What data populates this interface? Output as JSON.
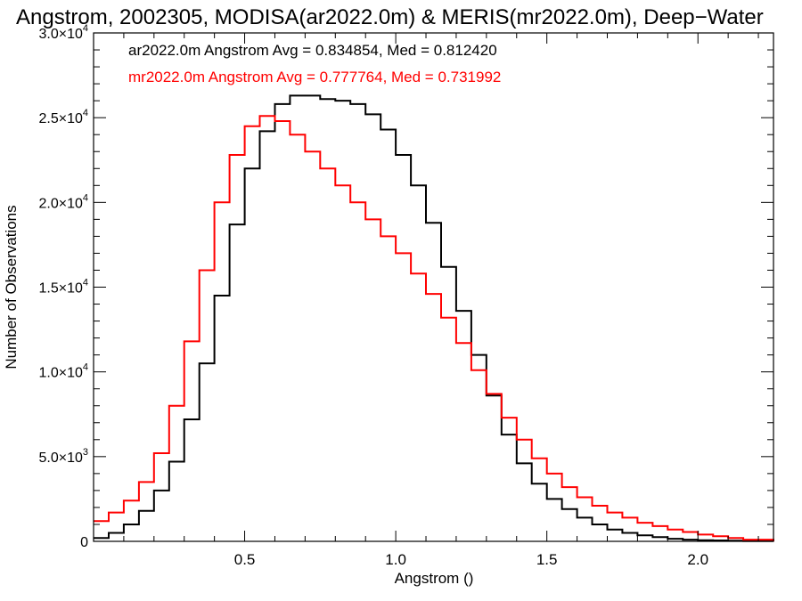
{
  "chart_data": {
    "type": "line",
    "title": "Angstrom, 2002305, MODISA(ar2022.0m) & MERIS(mr2022.0m), Deep−Water",
    "xlabel": "Angstrom ()",
    "ylabel": "Number of Observations",
    "xlim": [
      0.0,
      2.25
    ],
    "ylim": [
      0,
      30000
    ],
    "x_ticks": [
      0.5,
      1.0,
      1.5,
      2.0
    ],
    "x_tick_labels": [
      "0.5",
      "1.0",
      "1.5",
      "2.0"
    ],
    "y_ticks": [
      0,
      5000,
      10000,
      15000,
      20000,
      25000,
      30000
    ],
    "y_tick_labels": [
      {
        "mant": "0",
        "exp": ""
      },
      {
        "mant": "5.0×10",
        "exp": "3"
      },
      {
        "mant": "1.0×10",
        "exp": "4"
      },
      {
        "mant": "1.5×10",
        "exp": "4"
      },
      {
        "mant": "2.0×10",
        "exp": "4"
      },
      {
        "mant": "2.5×10",
        "exp": "4"
      },
      {
        "mant": "3.0×10",
        "exp": "4"
      }
    ],
    "grid": false,
    "legend": [
      {
        "text": "ar2022.0m Angstrom Avg = 0.834854, Med = 0.812420",
        "color": "#000000"
      },
      {
        "text": "mr2022.0m Angstrom Avg = 0.777764, Med = 0.731992",
        "color": "#ff0000"
      }
    ],
    "series": [
      {
        "color": "#000000",
        "step": true,
        "x": [
          0.0,
          0.05,
          0.1,
          0.15,
          0.2,
          0.25,
          0.3,
          0.35,
          0.4,
          0.45,
          0.5,
          0.55,
          0.6,
          0.65,
          0.7,
          0.75,
          0.8,
          0.85,
          0.9,
          0.95,
          1.0,
          1.05,
          1.1,
          1.15,
          1.2,
          1.25,
          1.3,
          1.35,
          1.4,
          1.45,
          1.5,
          1.55,
          1.6,
          1.65,
          1.7,
          1.75,
          1.8,
          1.85,
          1.9,
          1.95,
          2.0,
          2.05,
          2.1,
          2.15
        ],
        "y": [
          200,
          500,
          1000,
          1800,
          3000,
          4700,
          7200,
          10500,
          14500,
          18700,
          22000,
          24200,
          25800,
          26300,
          26300,
          26100,
          26000,
          25800,
          25200,
          24300,
          22800,
          21000,
          18800,
          16200,
          13600,
          11000,
          8600,
          6300,
          4600,
          3400,
          2500,
          1900,
          1400,
          1000,
          700,
          500,
          350,
          250,
          150,
          100,
          70,
          50,
          40,
          20
        ]
      },
      {
        "color": "#ff0000",
        "step": true,
        "x": [
          0.0,
          0.05,
          0.1,
          0.15,
          0.2,
          0.25,
          0.3,
          0.35,
          0.4,
          0.45,
          0.5,
          0.55,
          0.6,
          0.65,
          0.7,
          0.75,
          0.8,
          0.85,
          0.9,
          0.95,
          1.0,
          1.05,
          1.1,
          1.15,
          1.2,
          1.25,
          1.3,
          1.35,
          1.4,
          1.45,
          1.5,
          1.55,
          1.6,
          1.65,
          1.7,
          1.75,
          1.8,
          1.85,
          1.9,
          1.95,
          2.0,
          2.05,
          2.1,
          2.15
        ],
        "y": [
          1200,
          1700,
          2400,
          3500,
          5200,
          8000,
          11800,
          16000,
          20000,
          22800,
          24500,
          25100,
          24800,
          24000,
          23000,
          22000,
          21000,
          20000,
          19000,
          18000,
          17000,
          15800,
          14600,
          13200,
          11700,
          10100,
          8700,
          7300,
          6000,
          4900,
          4000,
          3200,
          2600,
          2100,
          1700,
          1400,
          1100,
          900,
          700,
          550,
          400,
          300,
          200,
          100
        ]
      }
    ]
  }
}
